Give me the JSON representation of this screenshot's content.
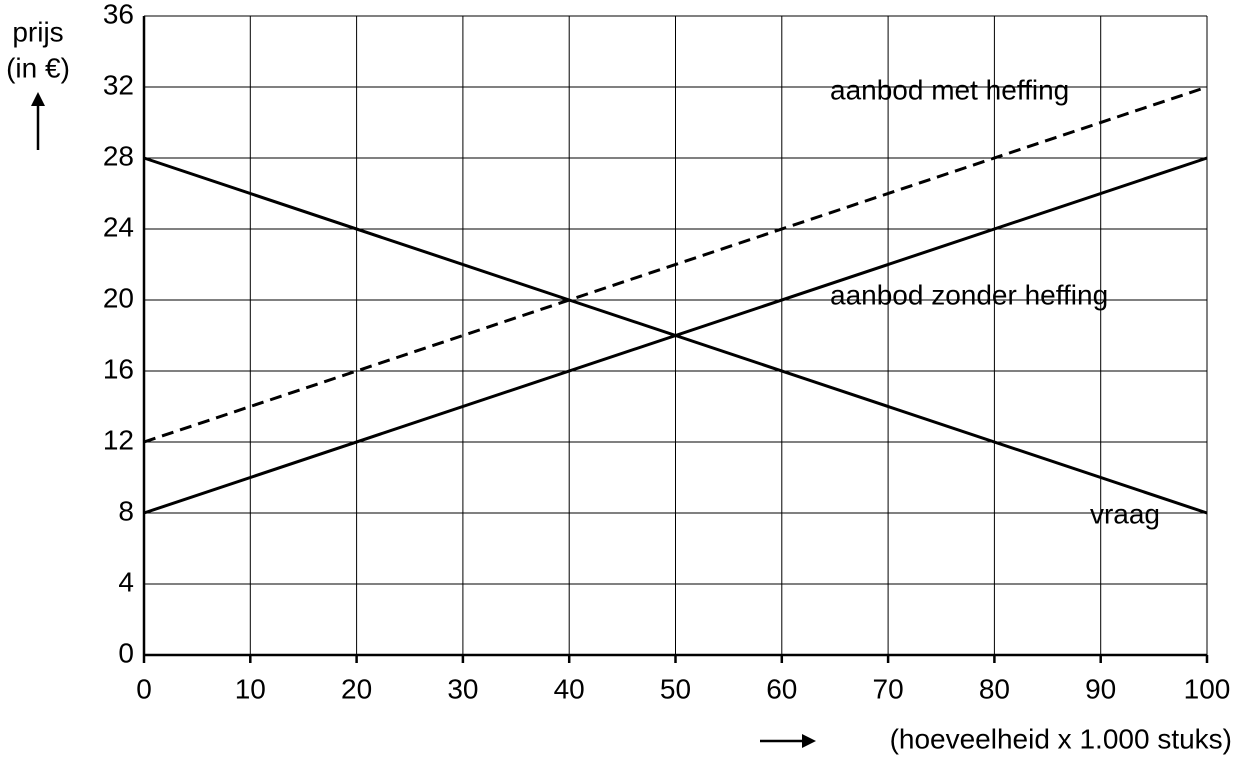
{
  "chart_data": {
    "type": "line",
    "ylabel": [
      "prijs",
      "(in €)"
    ],
    "xlabel": "(hoeveelheid x 1.000 stuks)",
    "x": [
      0,
      100
    ],
    "series": [
      {
        "name": "aanbod met heffing",
        "color": "#000000",
        "dashed": true,
        "values": [
          12,
          32
        ]
      },
      {
        "name": "aanbod zonder heffing",
        "color": "#000000",
        "dashed": false,
        "values": [
          8,
          28
        ]
      },
      {
        "name": "vraag",
        "color": "#000000",
        "dashed": false,
        "values": [
          28,
          8
        ]
      }
    ],
    "xlim": [
      0,
      100
    ],
    "xticks": [
      0,
      10,
      20,
      30,
      40,
      50,
      60,
      70,
      80,
      90,
      100
    ],
    "ylim": [
      0,
      36
    ],
    "yticks": [
      0,
      4,
      8,
      12,
      16,
      20,
      24,
      28,
      32,
      36
    ],
    "grid": true
  }
}
